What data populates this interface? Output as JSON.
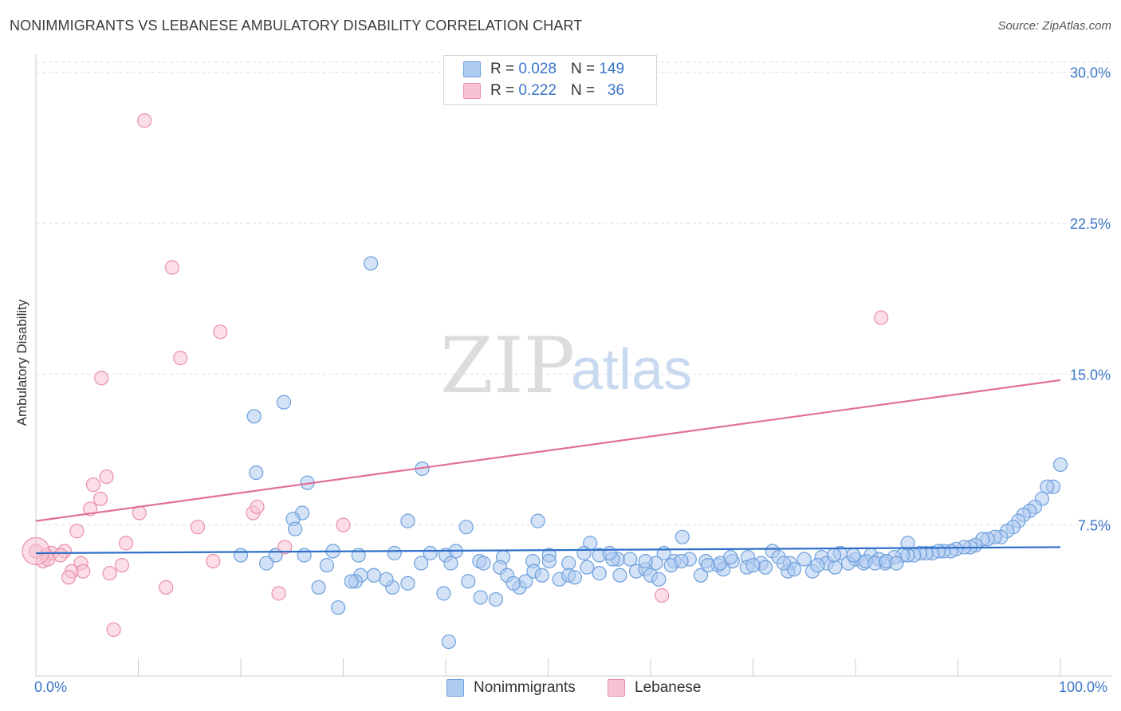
{
  "header": {
    "title": "NONIMMIGRANTS VS LEBANESE AMBULATORY DISABILITY CORRELATION CHART",
    "source": "Source: ZipAtlas.com"
  },
  "legend_top": {
    "rows": [
      {
        "r_label": "R =",
        "r_value": "0.028",
        "n_label": "N =",
        "n_value": "149"
      },
      {
        "r_label": "R =",
        "r_value": "0.222",
        "n_label": "N =",
        "n_value": "36"
      }
    ]
  },
  "watermark": {
    "zip": "ZIP",
    "atlas": "atlas"
  },
  "colors": {
    "blue_fill": "#aecbf0",
    "blue_stroke": "#6d9fdb",
    "blue_line": "#2f6fc9",
    "pink_fill": "#f7c3d2",
    "pink_stroke": "#e98fab",
    "pink_line": "#e0709a",
    "tick_label": "#3a76c8"
  },
  "chart_data": {
    "type": "scatter",
    "title": "NONIMMIGRANTS VS LEBANESE AMBULATORY DISABILITY CORRELATION CHART",
    "xlabel": "",
    "ylabel": "Ambulatory Disability",
    "xlim": [
      0,
      100
    ],
    "ylim": [
      0,
      30.5
    ],
    "y_ticks": [
      7.5,
      15.0,
      22.5,
      30.0
    ],
    "y_tick_labels": [
      "7.5%",
      "15.0%",
      "22.5%",
      "30.0%"
    ],
    "x_tick_labels": [
      "0.0%",
      "100.0%"
    ],
    "grid": true,
    "legend_position": "top-center",
    "series": [
      {
        "name": "Nonimmigrants",
        "color": "#aecbf0",
        "stats": {
          "R": 0.028,
          "N": 149
        },
        "trendline": {
          "x": [
            0,
            100
          ],
          "y": [
            6.1,
            6.4
          ]
        },
        "points": [
          [
            32.7,
            20.5
          ],
          [
            24.2,
            13.6
          ],
          [
            21.3,
            12.9
          ],
          [
            100,
            10.5
          ],
          [
            37.7,
            10.3
          ],
          [
            21.5,
            10.1
          ],
          [
            26.5,
            9.6
          ],
          [
            99.3,
            9.4
          ],
          [
            98.7,
            9.4
          ],
          [
            98.2,
            8.8
          ],
          [
            97.5,
            8.4
          ],
          [
            97.0,
            8.2
          ],
          [
            96.4,
            8.0
          ],
          [
            95.9,
            7.7
          ],
          [
            95.4,
            7.4
          ],
          [
            94.8,
            7.2
          ],
          [
            26.0,
            8.1
          ],
          [
            25.1,
            7.8
          ],
          [
            36.3,
            7.7
          ],
          [
            49.0,
            7.7
          ],
          [
            42.0,
            7.4
          ],
          [
            25.3,
            7.3
          ],
          [
            63.1,
            6.9
          ],
          [
            94.2,
            6.9
          ],
          [
            93.6,
            6.9
          ],
          [
            92.9,
            6.8
          ],
          [
            92.4,
            6.8
          ],
          [
            91.7,
            6.5
          ],
          [
            91.2,
            6.4
          ],
          [
            90.6,
            6.4
          ],
          [
            89.8,
            6.3
          ],
          [
            89.3,
            6.2
          ],
          [
            88.6,
            6.2
          ],
          [
            88.1,
            6.2
          ],
          [
            87.5,
            6.1
          ],
          [
            86.9,
            6.1
          ],
          [
            86.3,
            6.1
          ],
          [
            85.7,
            6.0
          ],
          [
            85.1,
            6.0
          ],
          [
            84.6,
            6.0
          ],
          [
            85.1,
            6.6
          ],
          [
            54.1,
            6.6
          ],
          [
            61.3,
            6.1
          ],
          [
            71.9,
            6.2
          ],
          [
            76.7,
            5.9
          ],
          [
            78.5,
            6.1
          ],
          [
            80.0,
            5.8
          ],
          [
            81.5,
            6.0
          ],
          [
            80.8,
            5.6
          ],
          [
            82.3,
            5.8
          ],
          [
            82.9,
            5.6
          ],
          [
            83.8,
            5.9
          ],
          [
            20.0,
            6.0
          ],
          [
            23.4,
            6.0
          ],
          [
            26.2,
            6.0
          ],
          [
            29.0,
            6.2
          ],
          [
            31.5,
            6.0
          ],
          [
            35.0,
            6.1
          ],
          [
            38.5,
            6.1
          ],
          [
            40.0,
            6.0
          ],
          [
            41.0,
            6.2
          ],
          [
            43.3,
            5.7
          ],
          [
            45.6,
            5.9
          ],
          [
            48.5,
            5.7
          ],
          [
            50.1,
            6.0
          ],
          [
            52.0,
            5.6
          ],
          [
            53.5,
            6.1
          ],
          [
            55.0,
            6.0
          ],
          [
            56.8,
            5.8
          ],
          [
            58.0,
            5.8
          ],
          [
            60.5,
            5.6
          ],
          [
            62.3,
            5.7
          ],
          [
            63.8,
            5.8
          ],
          [
            65.4,
            5.7
          ],
          [
            66.6,
            5.5
          ],
          [
            68.0,
            5.7
          ],
          [
            69.5,
            5.9
          ],
          [
            70.8,
            5.6
          ],
          [
            72.5,
            5.9
          ],
          [
            73.6,
            5.6
          ],
          [
            75.0,
            5.8
          ],
          [
            77.2,
            5.6
          ],
          [
            78.0,
            5.4
          ],
          [
            79.3,
            5.6
          ],
          [
            81.0,
            5.7
          ],
          [
            81.9,
            5.6
          ],
          [
            83.0,
            5.7
          ],
          [
            22.5,
            5.6
          ],
          [
            28.4,
            5.5
          ],
          [
            31.7,
            5.0
          ],
          [
            34.8,
            4.4
          ],
          [
            36.3,
            4.6
          ],
          [
            40.5,
            5.6
          ],
          [
            42.2,
            4.7
          ],
          [
            43.7,
            5.6
          ],
          [
            45.3,
            5.4
          ],
          [
            46.0,
            5.0
          ],
          [
            47.2,
            4.4
          ],
          [
            47.8,
            4.7
          ],
          [
            48.6,
            5.2
          ],
          [
            50.1,
            5.7
          ],
          [
            51.1,
            4.8
          ],
          [
            52.0,
            5.0
          ],
          [
            52.6,
            4.9
          ],
          [
            53.8,
            5.4
          ],
          [
            55.0,
            5.1
          ],
          [
            56.3,
            5.8
          ],
          [
            57.0,
            5.0
          ],
          [
            58.6,
            5.2
          ],
          [
            59.5,
            5.3
          ],
          [
            60.0,
            5.0
          ],
          [
            60.8,
            4.8
          ],
          [
            62.0,
            5.5
          ],
          [
            64.9,
            5.0
          ],
          [
            67.1,
            5.3
          ],
          [
            69.4,
            5.4
          ],
          [
            71.2,
            5.4
          ],
          [
            73.4,
            5.2
          ],
          [
            74.0,
            5.3
          ],
          [
            75.8,
            5.2
          ],
          [
            76.3,
            5.5
          ],
          [
            31.2,
            4.7
          ],
          [
            30.8,
            4.7
          ],
          [
            34.2,
            4.8
          ],
          [
            37.6,
            5.6
          ],
          [
            29.5,
            3.4
          ],
          [
            27.6,
            4.4
          ],
          [
            39.8,
            4.1
          ],
          [
            43.4,
            3.9
          ],
          [
            44.9,
            3.8
          ],
          [
            46.6,
            4.6
          ],
          [
            40.3,
            1.7
          ],
          [
            33.0,
            5.0
          ],
          [
            49.4,
            5.0
          ],
          [
            56.0,
            6.1
          ],
          [
            66.8,
            5.6
          ],
          [
            70.0,
            5.5
          ],
          [
            73.0,
            5.6
          ],
          [
            77.9,
            6.0
          ],
          [
            79.8,
            6.0
          ],
          [
            63.0,
            5.7
          ],
          [
            84.0,
            5.6
          ],
          [
            65.6,
            5.5
          ],
          [
            67.8,
            5.9
          ],
          [
            59.5,
            5.7
          ]
        ]
      },
      {
        "name": "Lebanese",
        "color": "#f7c3d2",
        "stats": {
          "R": 0.222,
          "N": 36
        },
        "trendline": {
          "x": [
            0,
            100
          ],
          "y": [
            7.7,
            14.7
          ]
        },
        "points": [
          [
            10.6,
            27.6
          ],
          [
            13.3,
            20.3
          ],
          [
            18.0,
            17.1
          ],
          [
            82.5,
            17.8
          ],
          [
            14.1,
            15.8
          ],
          [
            6.4,
            14.8
          ],
          [
            6.9,
            9.9
          ],
          [
            5.6,
            9.5
          ],
          [
            6.3,
            8.8
          ],
          [
            5.3,
            8.3
          ],
          [
            10.1,
            8.1
          ],
          [
            21.2,
            8.1
          ],
          [
            21.6,
            8.4
          ],
          [
            4.0,
            7.2
          ],
          [
            15.8,
            7.4
          ],
          [
            30.0,
            7.5
          ],
          [
            8.8,
            6.6
          ],
          [
            0.0,
            6.2
          ],
          [
            2.8,
            6.2
          ],
          [
            24.3,
            6.4
          ],
          [
            1.5,
            6.1
          ],
          [
            2.4,
            6.0
          ],
          [
            1.0,
            6.0
          ],
          [
            0.7,
            5.7
          ],
          [
            1.2,
            5.8
          ],
          [
            4.4,
            5.6
          ],
          [
            8.4,
            5.5
          ],
          [
            17.3,
            5.7
          ],
          [
            3.5,
            5.2
          ],
          [
            4.6,
            5.2
          ],
          [
            7.2,
            5.1
          ],
          [
            3.2,
            4.9
          ],
          [
            12.7,
            4.4
          ],
          [
            23.7,
            4.1
          ],
          [
            61.1,
            4.0
          ],
          [
            7.6,
            2.3
          ]
        ]
      }
    ]
  }
}
